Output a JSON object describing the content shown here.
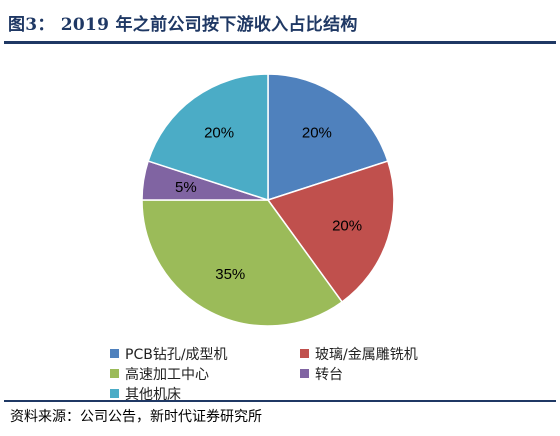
{
  "figure": {
    "label": "图3：",
    "title": "2019 年之前公司按下游收入占比结构"
  },
  "source": "资料来源：公司公告，新时代证券研究所",
  "chart_data": {
    "type": "pie",
    "title": "2019 年之前公司按下游收入占比结构",
    "start_angle_deg": 0,
    "direction": "clockwise",
    "slices": [
      {
        "name": "PCB钻孔/成型机",
        "value": 20,
        "label": "20%",
        "color": "#4f81bd"
      },
      {
        "name": "玻璃/金属雕铣机",
        "value": 20,
        "label": "20%",
        "color": "#c0504d"
      },
      {
        "name": "高速加工中心",
        "value": 35,
        "label": "35%",
        "color": "#9bbb59"
      },
      {
        "name": "转台",
        "value": 5,
        "label": "5%",
        "color": "#8064a2"
      },
      {
        "name": "其他机床",
        "value": 20,
        "label": "20%",
        "color": "#4bacc6"
      }
    ],
    "legend_position": "bottom",
    "legend_order": [
      "PCB钻孔/成型机",
      "玻璃/金属雕铣机",
      "高速加工中心",
      "转台",
      "其他机床"
    ]
  }
}
